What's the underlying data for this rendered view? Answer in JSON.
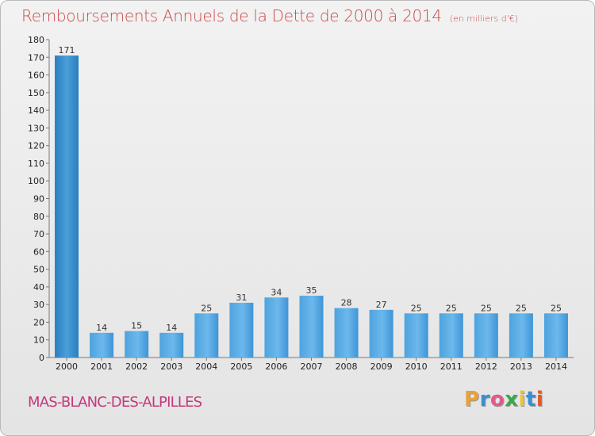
{
  "title": "Remboursements Annuels de la Dette de 2000 à 2014",
  "unit_note": "(en milliers d'€)",
  "city": "MAS-BLANC-DES-ALPILLES",
  "brand": {
    "letters": [
      "P",
      "r",
      "o",
      "x",
      "i",
      "t",
      "i"
    ],
    "colors": [
      "#e8a23a",
      "#3a8fd0",
      "#e05a8c",
      "#3aa84a",
      "#e8c53a",
      "#3a8fd0",
      "#e05a2a"
    ]
  },
  "colors": {
    "bar_light": "#6cb8ec",
    "bar_dark": "#2a7fc0",
    "title": "#c94a4a",
    "city": "#c4387a"
  },
  "chart_data": {
    "type": "bar",
    "categories": [
      "2000",
      "2001",
      "2002",
      "2003",
      "2004",
      "2005",
      "2006",
      "2007",
      "2008",
      "2009",
      "2010",
      "2011",
      "2012",
      "2013",
      "2014"
    ],
    "values": [
      171,
      14,
      15,
      14,
      25,
      31,
      34,
      35,
      28,
      27,
      25,
      25,
      25,
      25,
      25
    ],
    "title": "Remboursements Annuels de la Dette de 2000 à 2014",
    "ylim": [
      0,
      180
    ],
    "yticks": [
      0,
      10,
      20,
      30,
      40,
      50,
      60,
      70,
      80,
      90,
      100,
      110,
      120,
      130,
      140,
      150,
      160,
      170,
      180
    ],
    "grid": false,
    "legend": "none"
  }
}
